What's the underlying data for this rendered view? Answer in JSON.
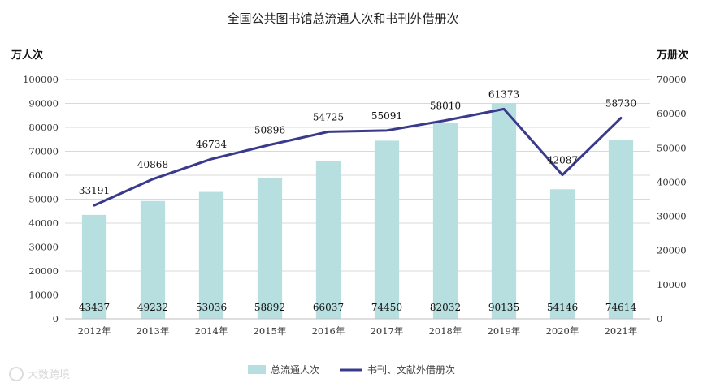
{
  "chart_data": {
    "type": "bar",
    "title": "全国公共图书馆总流通人次和书刊外借册次",
    "ylabel": "万人次",
    "y2label": "万册次",
    "categories": [
      "2012年",
      "2013年",
      "2014年",
      "2015年",
      "2016年",
      "2017年",
      "2018年",
      "2019年",
      "2020年",
      "2021年"
    ],
    "ylim": [
      0,
      100000
    ],
    "y_ticks": [
      0,
      10000,
      20000,
      30000,
      40000,
      50000,
      60000,
      70000,
      80000,
      90000,
      100000
    ],
    "y2lim": [
      0,
      70000
    ],
    "y2_ticks": [
      0,
      10000,
      20000,
      30000,
      40000,
      50000,
      60000,
      70000
    ],
    "grid": true,
    "legend": "bottom-center",
    "series": [
      {
        "name": "总流通人次",
        "type": "bar",
        "axis": "left",
        "color": "#b7dfe0",
        "values": [
          43437,
          49232,
          53036,
          58892,
          66037,
          74450,
          82032,
          90135,
          54146,
          74614
        ]
      },
      {
        "name": "书刊、文献外借册次",
        "type": "line",
        "axis": "right",
        "color": "#3a3a8c",
        "values": [
          33191,
          40868,
          46734,
          50896,
          54725,
          55091,
          58010,
          61373,
          42087,
          58730
        ]
      }
    ]
  },
  "watermark": {
    "text": "大数跨境"
  }
}
